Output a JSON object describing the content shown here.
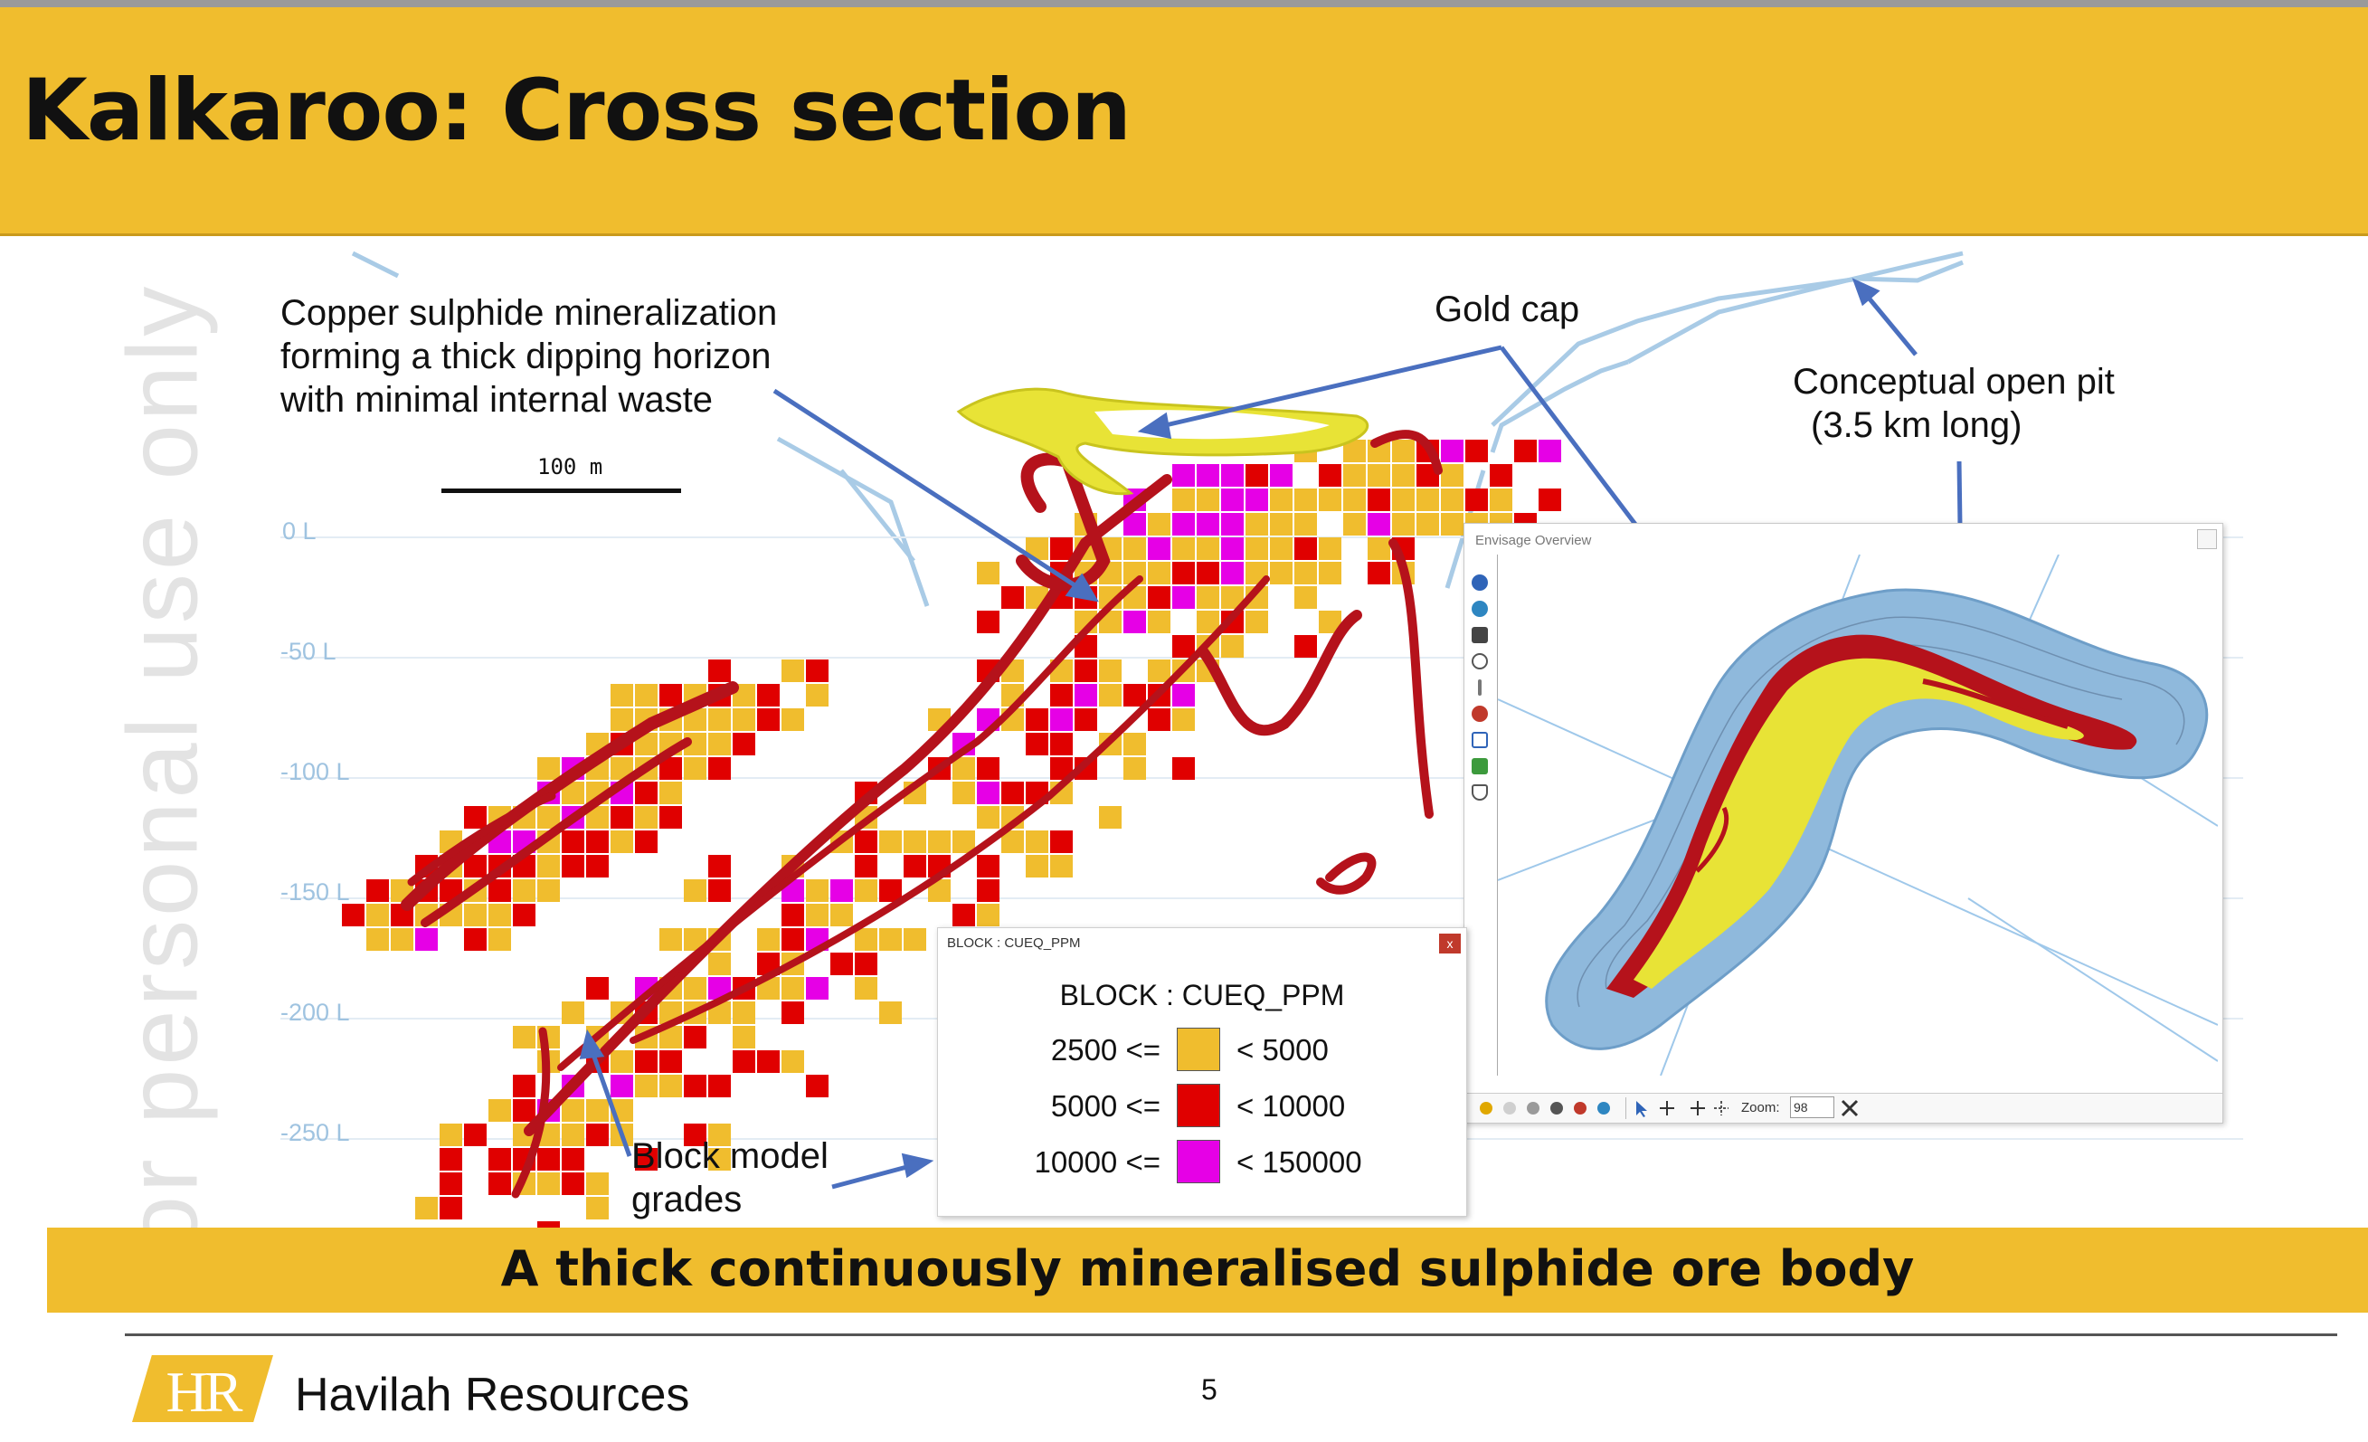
{
  "slide": {
    "title": "Kalkaroo: Cross section",
    "watermark": "For personal use only"
  },
  "annotations": {
    "copper_line1": "Copper sulphide mineralization",
    "copper_line2": "forming a thick dipping horizon",
    "copper_line3": "with minimal internal waste",
    "gold_cap": "Gold cap",
    "pit_line1": "Conceptual open pit",
    "pit_line2": "(3.5 km long)",
    "block_line1": "Block model",
    "block_line2": "grades"
  },
  "scale": {
    "label": "100 m"
  },
  "levels": [
    "0 L",
    "-50 L",
    "-100 L",
    "-150 L",
    "-200 L",
    "-250 L"
  ],
  "legend": {
    "window_title": "BLOCK : CUEQ_PPM",
    "close": "x",
    "heading": "BLOCK : CUEQ_PPM",
    "rows": [
      {
        "lower": "2500 <=",
        "upper": "< 5000",
        "color": "#f0bd2e"
      },
      {
        "lower": "5000 <=",
        "upper": "< 10000",
        "color": "#e00000"
      },
      {
        "lower": "10000 <=",
        "upper": "< 150000",
        "color": "#e600e6"
      }
    ]
  },
  "envisage": {
    "window_title": "Envisage Overview",
    "zoom_label": "Zoom:",
    "zoom_value": "98"
  },
  "banner": {
    "text": "A thick continuously mineralised sulphide ore body"
  },
  "footer": {
    "logo": "HR",
    "company": "Havilah Resources",
    "page": "5"
  },
  "colors": {
    "header": "#f0bd2e",
    "grade_low": "#f0bd2e",
    "grade_mid": "#e00000",
    "grade_high": "#e600e6",
    "surface": "#b5121b",
    "gold_cap": "#e8e336",
    "pit": "#8fb9dc",
    "arrow": "#4a6fbf"
  }
}
